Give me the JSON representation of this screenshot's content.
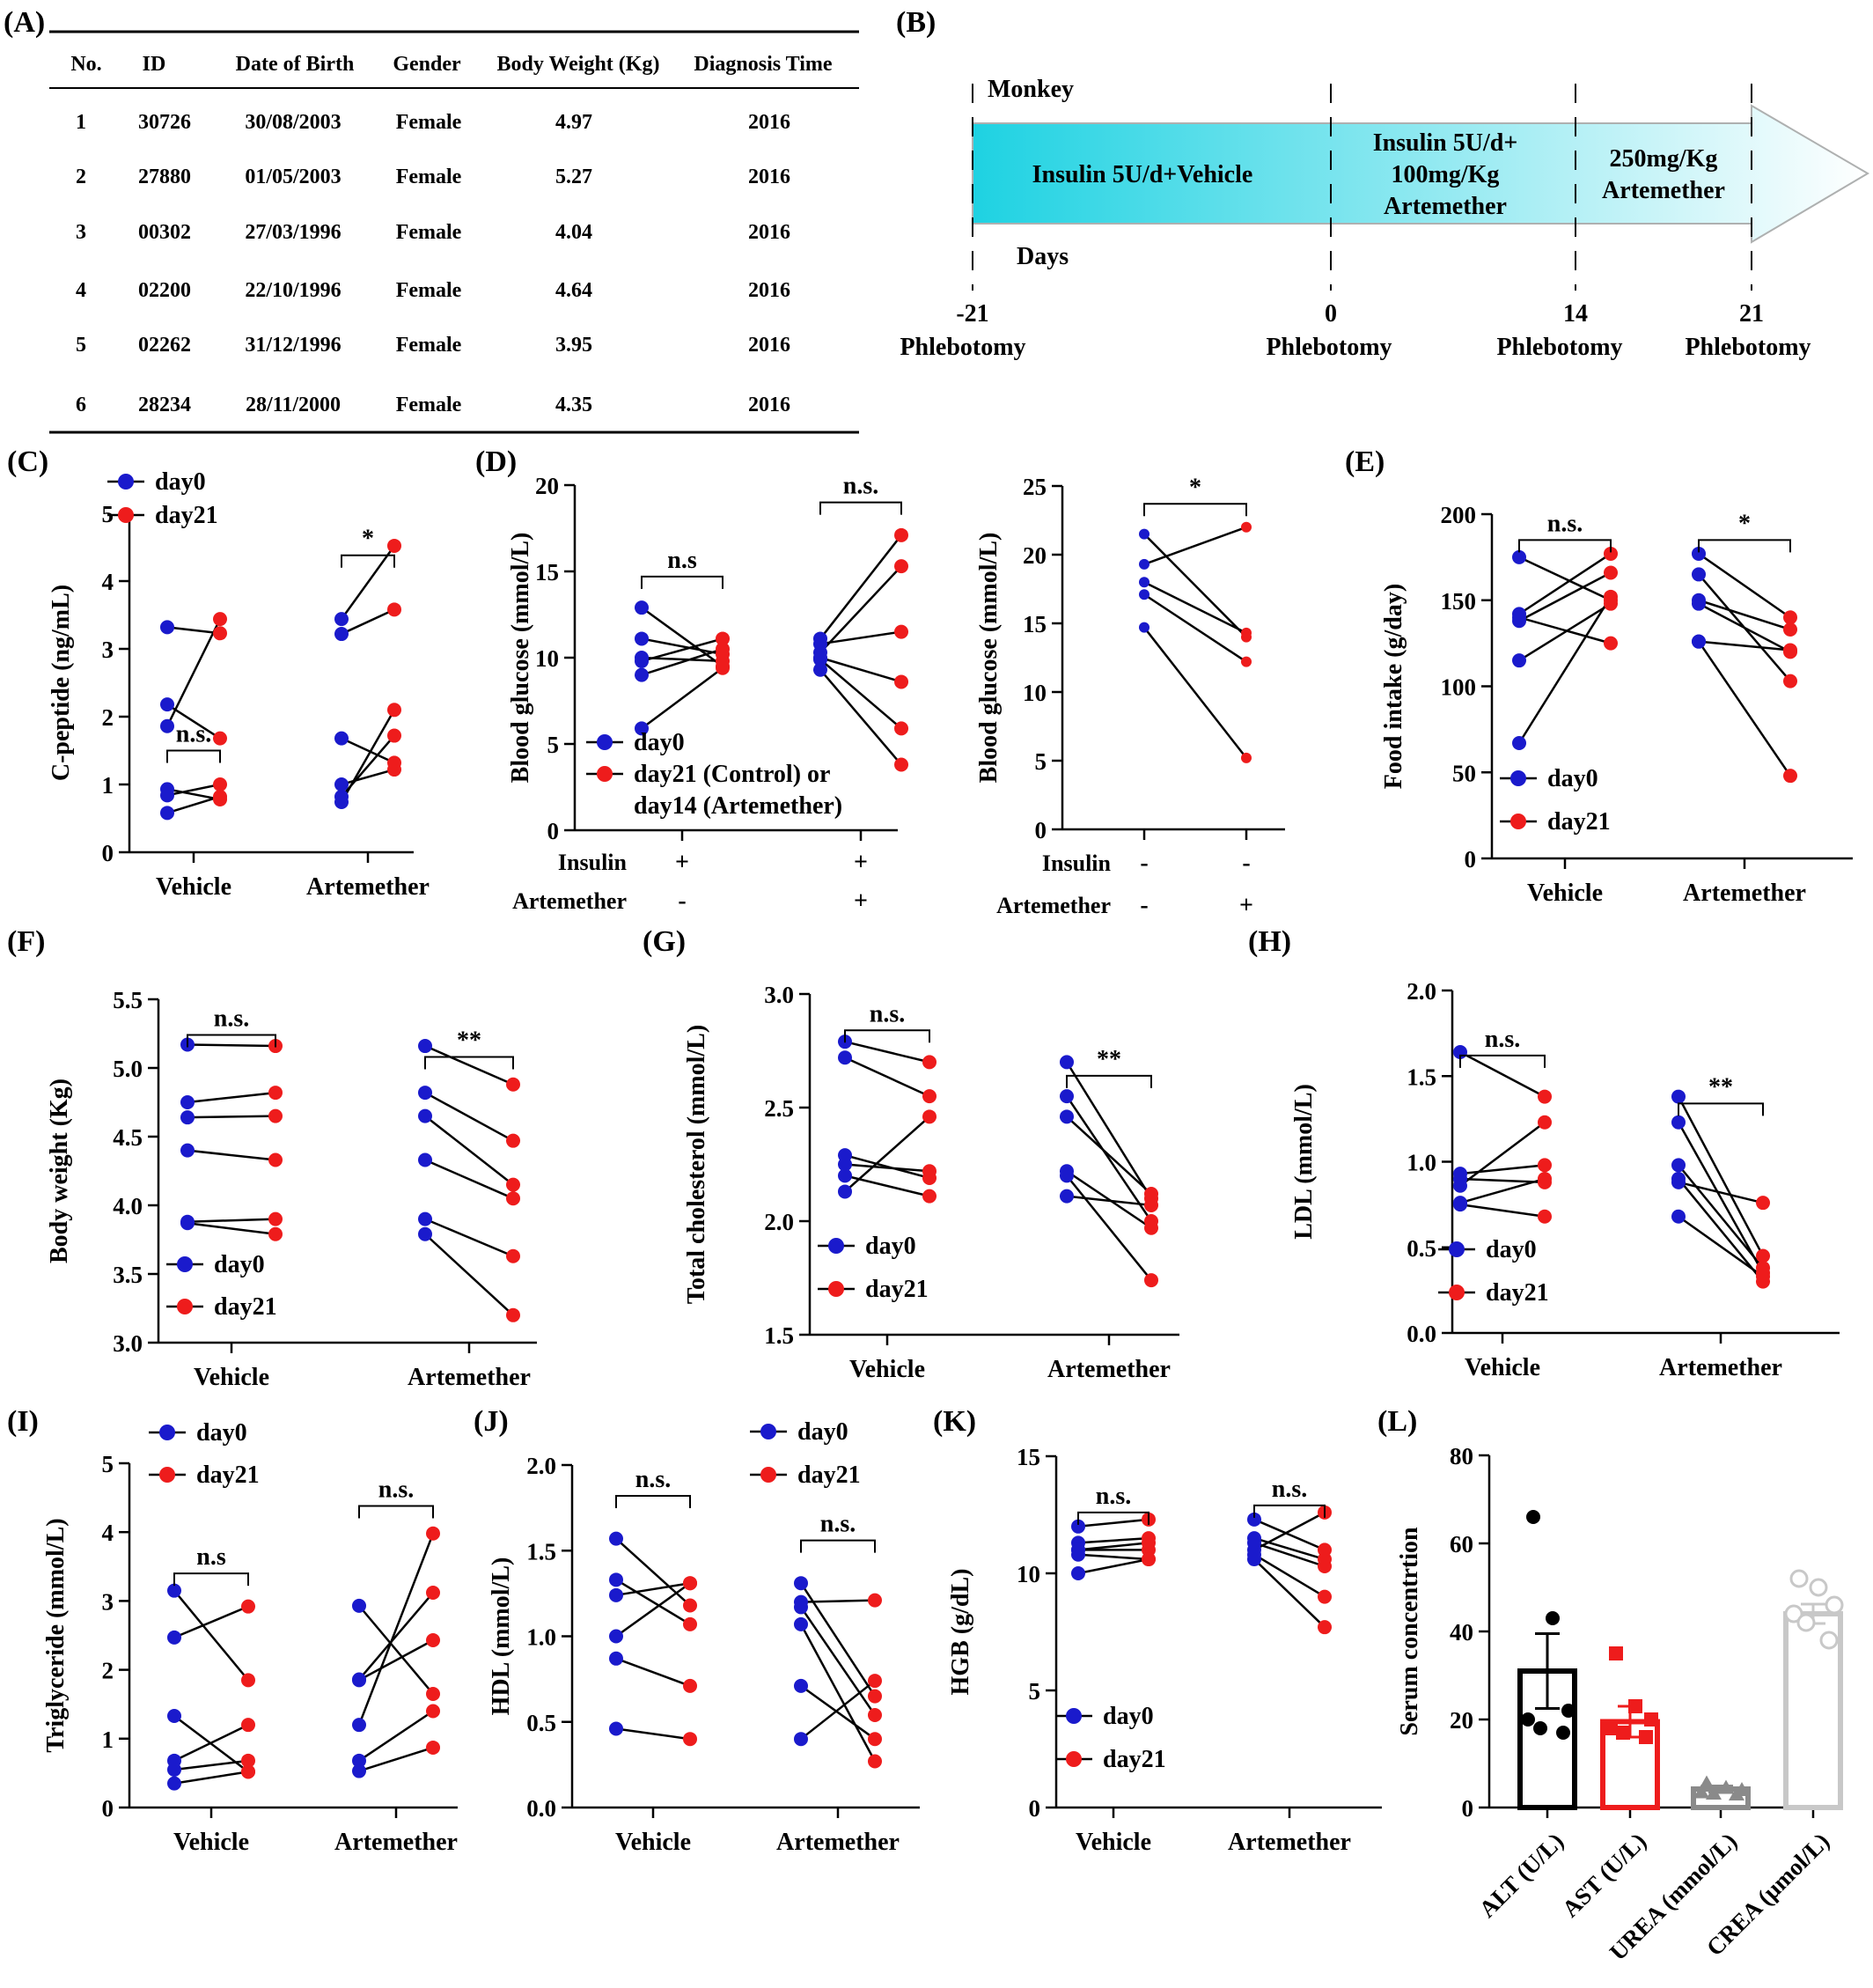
{
  "colors": {
    "day0": "#1a1acc",
    "day21": "#ee1c1c",
    "line": "#000000",
    "alt": "#000000",
    "ast": "#ee1c1c",
    "urea": "#8a8a8a",
    "crea": "#c8c8c8",
    "timeline_start": "#1ed2e2",
    "timeline_end": "#ffffff"
  },
  "panel_a": {
    "label": "(A)",
    "headers": [
      "No.",
      "ID",
      "Date of Birth",
      "Gender",
      "Body Weight (Kg)",
      "Diagnosis Time"
    ],
    "rows": [
      [
        "1",
        "30726",
        "30/08/2003",
        "Female",
        "4.97",
        "2016"
      ],
      [
        "2",
        "27880",
        "01/05/2003",
        "Female",
        "5.27",
        "2016"
      ],
      [
        "3",
        "00302",
        "27/03/1996",
        "Female",
        "4.04",
        "2016"
      ],
      [
        "4",
        "02200",
        "22/10/1996",
        "Female",
        "4.64",
        "2016"
      ],
      [
        "5",
        "02262",
        "31/12/1996",
        "Female",
        "3.95",
        "2016"
      ],
      [
        "6",
        "28234",
        "28/11/2000",
        "Female",
        "4.35",
        "2016"
      ]
    ]
  },
  "panel_b": {
    "label": "(B)",
    "monkey": "Monkey",
    "days": "Days",
    "segments": [
      [
        "Insulin 5U/d+Vehicle"
      ],
      [
        "Insulin 5U/d+",
        "100mg/Kg",
        "Artemether"
      ],
      [
        "250mg/Kg",
        "Artemether"
      ]
    ],
    "ticks": [
      "-21",
      "0",
      "14",
      "21"
    ],
    "event": "Phlebotomy"
  },
  "chart_data": [
    {
      "id": "C",
      "label": "(C)",
      "type": "scatter",
      "ylabel": "C-peptide (ng/mL)",
      "ylim": [
        0,
        5
      ],
      "yticks": [
        0,
        1,
        2,
        3,
        4,
        5
      ],
      "groups": [
        "Vehicle",
        "Artemether"
      ],
      "legend": [
        "day0",
        "day21"
      ],
      "pairs": [
        [
          [
            3.32,
            3.23
          ],
          [
            2.18,
            1.68
          ],
          [
            1.86,
            3.44
          ],
          [
            0.93,
            0.78
          ],
          [
            0.84,
            1.0
          ],
          [
            0.58,
            0.82
          ]
        ],
        [
          [
            3.44,
            4.52
          ],
          [
            3.22,
            3.58
          ],
          [
            1.68,
            1.32
          ],
          [
            1.0,
            1.22
          ],
          [
            0.82,
            1.72
          ],
          [
            0.74,
            2.1
          ]
        ]
      ],
      "sig": [
        "n.s.",
        "*"
      ]
    },
    {
      "id": "D1",
      "label": "(D)",
      "type": "scatter",
      "ylabel": "Blood glucose (mmol/L)",
      "ylim": [
        0,
        20
      ],
      "yticks": [
        0,
        5,
        10,
        15,
        20
      ],
      "legend": [
        "day0",
        "day21 (Control) or",
        "day14 (Artemether)"
      ],
      "rows": [
        {
          "label": "Insulin",
          "values": [
            "+",
            "+"
          ]
        },
        {
          "label": "Artemether",
          "values": [
            "-",
            "+"
          ]
        }
      ],
      "pairs": [
        [
          [
            12.9,
            9.5
          ],
          [
            11.1,
            10.2
          ],
          [
            10.0,
            9.8
          ],
          [
            9.8,
            11.1
          ],
          [
            9.0,
            10.5
          ],
          [
            5.9,
            9.4
          ]
        ],
        [
          [
            11.1,
            17.1
          ],
          [
            10.8,
            11.5
          ],
          [
            10.3,
            15.3
          ],
          [
            10.0,
            8.6
          ],
          [
            9.9,
            5.9
          ],
          [
            9.3,
            3.8
          ]
        ]
      ],
      "sig": [
        "n.s",
        "n.s."
      ]
    },
    {
      "id": "D2",
      "type": "scatter",
      "ylabel": "Blood glucose (mmol/L)",
      "ylim": [
        0,
        25
      ],
      "yticks": [
        0,
        5,
        10,
        15,
        20,
        25
      ],
      "rows": [
        {
          "label": "Insulin",
          "values": [
            "-",
            "-"
          ]
        },
        {
          "label": "Artemether",
          "values": [
            "-",
            "+"
          ]
        }
      ],
      "pairs": [
        [
          [
            21.5,
            14.0
          ],
          [
            19.3,
            22.0
          ],
          [
            18.0,
            14.3
          ],
          [
            17.1,
            12.2
          ],
          [
            14.7,
            5.2
          ]
        ]
      ],
      "sig": [
        "*"
      ]
    },
    {
      "id": "E",
      "label": "(E)",
      "type": "scatter",
      "ylabel": "Food intake (g/day)",
      "ylim": [
        0,
        200
      ],
      "yticks": [
        0,
        50,
        100,
        150,
        200
      ],
      "groups": [
        "Vehicle",
        "Artemether"
      ],
      "legend": [
        "day0",
        "day21"
      ],
      "pairs": [
        [
          [
            175,
            150
          ],
          [
            142,
            177
          ],
          [
            140,
            125
          ],
          [
            138,
            166
          ],
          [
            115,
            148
          ],
          [
            67,
            152
          ]
        ],
        [
          [
            177,
            140
          ],
          [
            165,
            103
          ],
          [
            150,
            133
          ],
          [
            148,
            120
          ],
          [
            126,
            121
          ],
          [
            126,
            48
          ]
        ]
      ],
      "sig": [
        "n.s.",
        "*"
      ]
    },
    {
      "id": "F",
      "label": "(F)",
      "type": "scatter",
      "ylabel": "Body weight (Kg)",
      "ylim": [
        3.0,
        5.5
      ],
      "yticks": [
        3.0,
        3.5,
        4.0,
        4.5,
        5.0,
        5.5
      ],
      "groups": [
        "Vehicle",
        "Artemether"
      ],
      "legend": [
        "day0",
        "day21"
      ],
      "pairs": [
        [
          [
            5.17,
            5.16
          ],
          [
            4.75,
            4.82
          ],
          [
            4.64,
            4.65
          ],
          [
            4.4,
            4.33
          ],
          [
            3.88,
            3.9
          ],
          [
            3.87,
            3.79
          ]
        ],
        [
          [
            5.16,
            4.88
          ],
          [
            4.82,
            4.47
          ],
          [
            4.65,
            4.15
          ],
          [
            4.33,
            4.05
          ],
          [
            3.9,
            3.63
          ],
          [
            3.79,
            3.2
          ]
        ]
      ],
      "sig": [
        "n.s.",
        "**"
      ]
    },
    {
      "id": "G",
      "label": "(G)",
      "type": "scatter",
      "ylabel": "Total cholesterol (mmol/L)",
      "ylim": [
        1.5,
        3.0
      ],
      "yticks": [
        1.5,
        2.0,
        2.5,
        3.0
      ],
      "groups": [
        "Vehicle",
        "Artemether"
      ],
      "legend": [
        "day0",
        "day21"
      ],
      "pairs": [
        [
          [
            2.79,
            2.7
          ],
          [
            2.72,
            2.55
          ],
          [
            2.29,
            2.19
          ],
          [
            2.25,
            2.22
          ],
          [
            2.2,
            2.11
          ],
          [
            2.13,
            2.46
          ]
        ],
        [
          [
            2.7,
            2.1
          ],
          [
            2.55,
            2.0
          ],
          [
            2.46,
            2.12
          ],
          [
            2.22,
            1.97
          ],
          [
            2.2,
            1.74
          ],
          [
            2.11,
            2.07
          ]
        ]
      ],
      "sig": [
        "n.s.",
        "**"
      ]
    },
    {
      "id": "H",
      "label": "(H)",
      "type": "scatter",
      "ylabel": "LDL (mmol/L)",
      "ylim": [
        0.0,
        2.0
      ],
      "yticks": [
        0.0,
        0.5,
        1.0,
        1.5,
        2.0
      ],
      "groups": [
        "Vehicle",
        "Artemether"
      ],
      "legend": [
        "day0",
        "day21"
      ],
      "pairs": [
        [
          [
            1.64,
            1.38
          ],
          [
            0.93,
            0.98
          ],
          [
            0.9,
            0.88
          ],
          [
            0.86,
            1.23
          ],
          [
            0.76,
            0.9
          ],
          [
            0.75,
            0.68
          ]
        ],
        [
          [
            1.38,
            0.45
          ],
          [
            1.23,
            0.35
          ],
          [
            0.98,
            0.38
          ],
          [
            0.9,
            0.3
          ],
          [
            0.88,
            0.76
          ],
          [
            0.68,
            0.33
          ]
        ]
      ],
      "sig": [
        "n.s.",
        "**"
      ]
    },
    {
      "id": "I",
      "label": "(I)",
      "type": "scatter",
      "ylabel": "Triglyceride (mmol/L)",
      "ylim": [
        0,
        5
      ],
      "yticks": [
        0,
        1,
        2,
        3,
        4,
        5
      ],
      "groups": [
        "Vehicle",
        "Artemether"
      ],
      "legend": [
        "day0",
        "day21"
      ],
      "pairs": [
        [
          [
            3.15,
            1.85
          ],
          [
            2.47,
            2.92
          ],
          [
            1.33,
            0.52
          ],
          [
            0.68,
            1.2
          ],
          [
            0.55,
            0.68
          ],
          [
            0.35,
            0.52
          ]
        ],
        [
          [
            2.93,
            1.65
          ],
          [
            1.86,
            3.12
          ],
          [
            1.85,
            2.43
          ],
          [
            1.2,
            3.98
          ],
          [
            0.68,
            1.4
          ],
          [
            0.53,
            0.87
          ]
        ]
      ],
      "sig": [
        "n.s",
        "n.s."
      ]
    },
    {
      "id": "J",
      "label": "(J)",
      "type": "scatter",
      "ylabel": "HDL (mmol/L)",
      "ylim": [
        0.0,
        2.0
      ],
      "yticks": [
        0.0,
        0.5,
        1.0,
        1.5,
        2.0
      ],
      "groups": [
        "Vehicle",
        "Artemether"
      ],
      "legend": [
        "day0",
        "day21"
      ],
      "pairs": [
        [
          [
            1.57,
            1.18
          ],
          [
            1.33,
            1.07
          ],
          [
            1.24,
            1.31
          ],
          [
            1.0,
            1.31
          ],
          [
            0.87,
            0.71
          ],
          [
            0.46,
            0.4
          ]
        ],
        [
          [
            1.31,
            0.65
          ],
          [
            1.17,
            0.54
          ],
          [
            1.07,
            0.27
          ],
          [
            0.71,
            0.4
          ],
          [
            0.4,
            0.74
          ],
          [
            1.2,
            1.21
          ]
        ]
      ],
      "sig": [
        "n.s.",
        "n.s."
      ]
    },
    {
      "id": "K",
      "label": "(K)",
      "type": "scatter",
      "ylabel": "HGB (g/dL)",
      "ylim": [
        0,
        15
      ],
      "yticks": [
        0,
        5,
        10,
        15
      ],
      "groups": [
        "Vehicle",
        "Artemether"
      ],
      "legend": [
        "day0",
        "day21"
      ],
      "pairs": [
        [
          [
            12.0,
            12.3
          ],
          [
            11.3,
            11.5
          ],
          [
            11.0,
            11.0
          ],
          [
            11.0,
            11.3
          ],
          [
            10.8,
            10.6
          ],
          [
            10.0,
            10.6
          ]
        ],
        [
          [
            12.3,
            11.0
          ],
          [
            11.5,
            10.6
          ],
          [
            11.3,
            10.3
          ],
          [
            11.0,
            12.6
          ],
          [
            10.8,
            9.0
          ],
          [
            10.6,
            7.7
          ]
        ]
      ],
      "sig": [
        "n.s.",
        "n.s."
      ]
    },
    {
      "id": "L",
      "label": "(L)",
      "type": "bar",
      "ylabel": "Serum concentrtion",
      "ylim": [
        0,
        80
      ],
      "yticks": [
        0,
        20,
        40,
        60,
        80
      ],
      "categories": [
        "ALT (U/L)",
        "AST (U/L)",
        "UREA (mmol/L)",
        "CREA (μmol/L)"
      ],
      "values": [
        31,
        19.5,
        4.2,
        44
      ],
      "errors": [
        8.5,
        3.5,
        0.7,
        2.2
      ],
      "points": [
        [
          66,
          43,
          22,
          20,
          18,
          17
        ],
        [
          35,
          23,
          20,
          18,
          17,
          16
        ],
        [
          5.5,
          4.5,
          4.0,
          3.5,
          3.2,
          3.0
        ],
        [
          52,
          50,
          46,
          44,
          42,
          38
        ]
      ]
    }
  ]
}
